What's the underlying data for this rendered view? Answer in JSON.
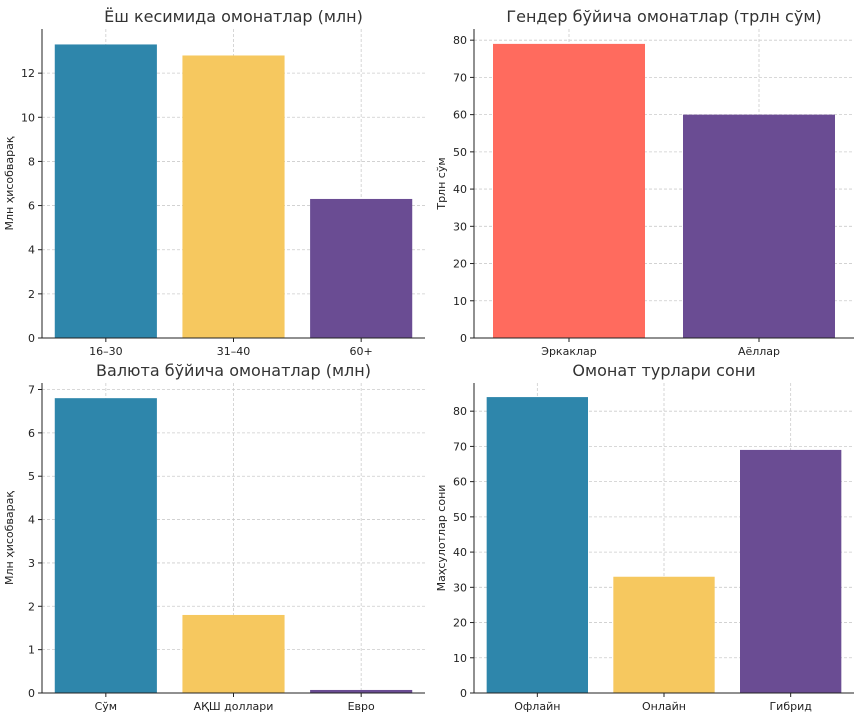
{
  "chart_data": [
    {
      "type": "bar",
      "title": "Ёш кесимида омонатлар (млн)",
      "ylabel": "Млн ҳисобварақ",
      "categories": [
        "16–30",
        "31–40",
        "60+"
      ],
      "values": [
        13.3,
        12.8,
        6.3
      ],
      "colors": [
        "#2e86ab",
        "#f6c85f",
        "#6a4c93"
      ],
      "ylim": [
        0,
        14
      ],
      "yticks": [
        0,
        2,
        4,
        6,
        8,
        10,
        12
      ],
      "grid": true
    },
    {
      "type": "bar",
      "title": "Гендер бўйича омонатлар (трлн сўм)",
      "ylabel": "Трлн сўм",
      "categories": [
        "Эркаклар",
        "Аёллар"
      ],
      "values": [
        79,
        60
      ],
      "colors": [
        "#ff6b5e",
        "#6a4c93"
      ],
      "ylim": [
        0,
        83
      ],
      "yticks": [
        0,
        10,
        20,
        30,
        40,
        50,
        60,
        70,
        80
      ],
      "grid": true
    },
    {
      "type": "bar",
      "title": "Валюта бўйича омонатлар (млн)",
      "ylabel": "Млн ҳисобварақ",
      "categories": [
        "Сўм",
        "АҚШ доллари",
        "Евро"
      ],
      "values": [
        6.8,
        1.8,
        0.07
      ],
      "colors": [
        "#2e86ab",
        "#f6c85f",
        "#6a4c93"
      ],
      "ylim": [
        0,
        7.15
      ],
      "yticks": [
        0,
        1,
        2,
        3,
        4,
        5,
        6,
        7
      ],
      "grid": true
    },
    {
      "type": "bar",
      "title": "Омонат турлари сони",
      "ylabel": "Маҳсулотлар сони",
      "categories": [
        "Офлайн",
        "Онлайн",
        "Гибрид"
      ],
      "values": [
        84,
        33,
        69
      ],
      "colors": [
        "#2e86ab",
        "#f6c85f",
        "#6a4c93"
      ],
      "ylim": [
        0,
        88
      ],
      "yticks": [
        0,
        10,
        20,
        30,
        40,
        50,
        60,
        70,
        80
      ],
      "grid": true
    }
  ]
}
